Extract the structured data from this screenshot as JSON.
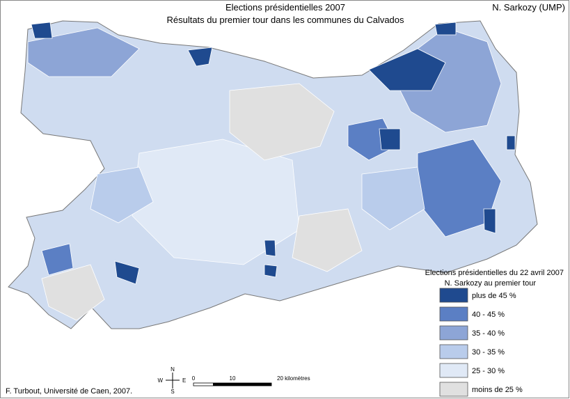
{
  "header": {
    "title": "Elections présidentielles 2007",
    "subtitle": "Résultats du premier tour dans les communes du Calvados",
    "candidate": "N. Sarkozy (UMP)"
  },
  "legend": {
    "title": "Elections présidentielles du 22 avril 2007",
    "subtitle": "N. Sarkozy au premier tour",
    "items": [
      {
        "label": "plus de 45 %",
        "color": "#1f4a8f"
      },
      {
        "label": "40 - 45 %",
        "color": "#5b7fc4"
      },
      {
        "label": "35 - 40 %",
        "color": "#8da5d6"
      },
      {
        "label": "30 - 35 %",
        "color": "#b9cceb"
      },
      {
        "label": "25 - 30 %",
        "color": "#e0e9f6"
      },
      {
        "label": "moins de 25 %",
        "color": "#e0e0e0"
      }
    ]
  },
  "scale": {
    "start": "0",
    "mid": "10",
    "end": "20 kilomètres"
  },
  "compass": {
    "n": "N",
    "s": "S",
    "e": "E",
    "w": "W"
  },
  "credit": "F. Turbout, Université de Caen, 2007."
}
